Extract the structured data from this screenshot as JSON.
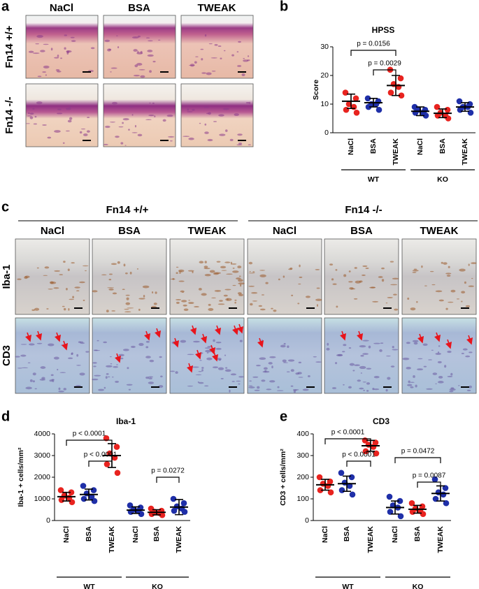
{
  "panel_labels": [
    "a",
    "b",
    "c",
    "d",
    "e"
  ],
  "figure_a": {
    "columns": [
      "NaCl",
      "BSA",
      "TWEAK"
    ],
    "rows": [
      "Fn14 +/+",
      "Fn14 -/-"
    ]
  },
  "figure_c": {
    "genotypes": [
      "Fn14 +/+",
      "Fn14 -/-"
    ],
    "columns": [
      "NaCl",
      "BSA",
      "TWEAK",
      "NaCl",
      "BSA",
      "TWEAK"
    ],
    "rows": [
      "Iba-1",
      "CD3"
    ]
  },
  "chart_data": [
    {
      "type": "dotplot",
      "title": "HPSS",
      "y_label": "Score",
      "categories": [
        "NaCl",
        "BSA",
        "TWEAK",
        "NaCl",
        "BSA",
        "TWEAK"
      ],
      "groups": [
        "WT",
        "KO"
      ],
      "colors": [
        "#e8231f",
        "#1f2fa8",
        "#e8231f",
        "#1f2fa8",
        "#e8231f",
        "#1f2fa8"
      ],
      "points": [
        [
          14,
          12,
          10,
          9,
          8,
          7
        ],
        [
          12,
          11,
          10,
          10,
          9,
          8
        ],
        [
          22,
          19,
          17,
          16,
          14,
          13
        ],
        [
          9,
          8,
          8,
          7,
          7,
          6
        ],
        [
          9,
          8,
          7,
          6,
          6,
          5
        ],
        [
          11,
          10,
          9,
          9,
          8,
          7
        ]
      ],
      "means": [
        11,
        10.5,
        16.5,
        7.5,
        6.8,
        9
      ],
      "sds": [
        2.5,
        1.5,
        3.5,
        1.5,
        1.5,
        1.5
      ],
      "ylim": [
        0,
        30
      ],
      "yticks": [
        0,
        10,
        20,
        30
      ],
      "comparisons": [
        "p = 0.0156",
        "p = 0.0029"
      ]
    },
    {
      "type": "dotplot",
      "title": "Iba-1",
      "y_label": "Iba-1 + cells/mm²",
      "categories": [
        "NaCl",
        "BSA",
        "TWEAK",
        "NaCl",
        "BSA",
        "TWEAK"
      ],
      "groups": [
        "WT",
        "KO"
      ],
      "colors": [
        "#e8231f",
        "#1f2fa8",
        "#e8231f",
        "#1f2fa8",
        "#e8231f",
        "#1f2fa8"
      ],
      "points": [
        [
          1400,
          1300,
          1150,
          1050,
          950,
          850
        ],
        [
          1600,
          1400,
          1250,
          1100,
          1000,
          900
        ],
        [
          3800,
          3400,
          3100,
          2900,
          2600,
          2200
        ],
        [
          700,
          600,
          500,
          450,
          400,
          300
        ],
        [
          550,
          450,
          400,
          350,
          300,
          250
        ],
        [
          1000,
          800,
          650,
          550,
          450,
          400
        ]
      ],
      "means": [
        1100,
        1200,
        3000,
        480,
        380,
        620
      ],
      "sds": [
        200,
        250,
        550,
        150,
        120,
        350
      ],
      "ylim": [
        0,
        4000
      ],
      "yticks": [
        0,
        1000,
        2000,
        3000,
        4000
      ],
      "comparisons": [
        "p < 0.0001",
        "p < 0.0001",
        "p = 0.0272"
      ]
    },
    {
      "type": "dotplot",
      "title": "CD3",
      "y_label": "CD3 + cells/mm²",
      "categories": [
        "NaCl",
        "BSA",
        "TWEAK",
        "NaCl",
        "BSA",
        "TWEAK"
      ],
      "groups": [
        "WT",
        "KO"
      ],
      "colors": [
        "#e8231f",
        "#1f2fa8",
        "#e8231f",
        "#1f2fa8",
        "#e8231f",
        "#1f2fa8"
      ],
      "points": [
        [
          200,
          180,
          170,
          160,
          140,
          130
        ],
        [
          220,
          200,
          175,
          160,
          140,
          120
        ],
        [
          370,
          360,
          350,
          340,
          320,
          310
        ],
        [
          110,
          90,
          70,
          60,
          40,
          20
        ],
        [
          80,
          65,
          55,
          45,
          40,
          30
        ],
        [
          190,
          150,
          130,
          120,
          100,
          80
        ]
      ],
      "means": [
        165,
        170,
        345,
        60,
        52,
        125
      ],
      "sds": [
        25,
        35,
        25,
        30,
        18,
        35
      ],
      "ylim": [
        0,
        400
      ],
      "yticks": [
        0,
        100,
        200,
        300,
        400
      ],
      "comparisons": [
        "p < 0.0001",
        "p < 0.0001",
        "p = 0.0472",
        "p = 0.0087"
      ]
    }
  ]
}
